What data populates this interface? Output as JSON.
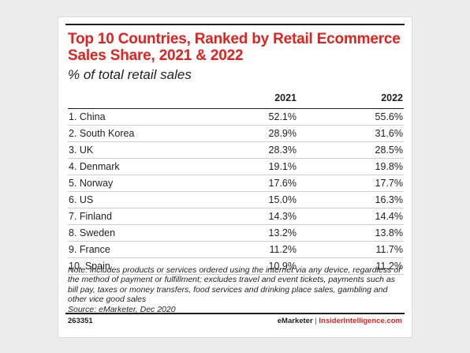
{
  "chart_data": {
    "type": "table",
    "title": "Top 10 Countries, Ranked by Retail Ecommerce Sales Share, 2021 & 2022",
    "subtitle": "% of total retail sales",
    "columns": [
      "",
      "2021",
      "2022"
    ],
    "rows": [
      {
        "country": "1. China",
        "v2021": "52.1%",
        "v2022": "55.6%"
      },
      {
        "country": "2. South Korea",
        "v2021": "28.9%",
        "v2022": "31.6%"
      },
      {
        "country": "3. UK",
        "v2021": "28.3%",
        "v2022": "28.5%"
      },
      {
        "country": "4. Denmark",
        "v2021": "19.1%",
        "v2022": "19.8%"
      },
      {
        "country": "5. Norway",
        "v2021": "17.6%",
        "v2022": "17.7%"
      },
      {
        "country": "6. US",
        "v2021": "15.0%",
        "v2022": "16.3%"
      },
      {
        "country": "7. Finland",
        "v2021": "14.3%",
        "v2022": "14.4%"
      },
      {
        "country": "8. Sweden",
        "v2021": "13.2%",
        "v2022": "13.8%"
      },
      {
        "country": "9. France",
        "v2021": "11.2%",
        "v2022": "11.7%"
      },
      {
        "country": "10. Spain",
        "v2021": "10.9%",
        "v2022": "11.2%"
      }
    ]
  },
  "note": "Note: includes products or services ordered using the internet via any device, regardless of the method of payment or fulfillment; excludes travel and event tickets, payments such as bill pay, taxes or money transfers, food services and drinking place sales, gambling and other vice good sales",
  "source": "Source: eMarketer, Dec 2020",
  "footer": {
    "chart_id": "263351",
    "brand_left": "eMarketer",
    "separator": "|",
    "brand_right": "InsiderIntelligence.com"
  },
  "colors": {
    "title": "#e4211c",
    "text": "#1f1f1f",
    "row_rule": "#cfcfcf",
    "background": "#ececec"
  }
}
